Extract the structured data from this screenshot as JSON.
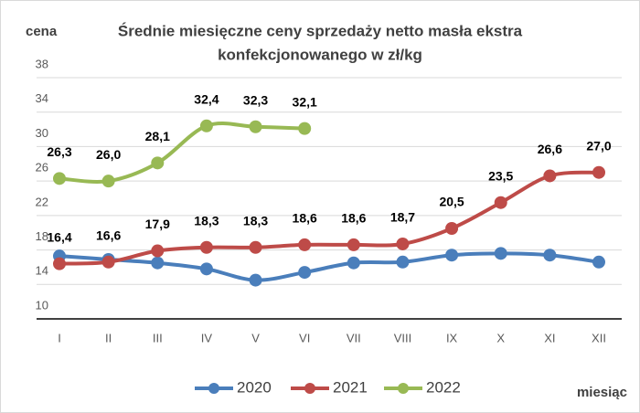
{
  "chart_data": {
    "type": "line",
    "title": [
      "Średnie miesięczne ceny sprzedaży netto masła ekstra",
      "konfekcjonowanego  w zł/kg"
    ],
    "y_label": "cena",
    "x_label": "miesiąc",
    "categories": [
      "I",
      "II",
      "III",
      "IV",
      "V",
      "VI",
      "VII",
      "VIII",
      "IX",
      "X",
      "XI",
      "XII"
    ],
    "series": [
      {
        "name": "2020",
        "color": "#4a7ebb",
        "values": [
          17.3,
          16.9,
          16.5,
          15.8,
          14.5,
          15.4,
          16.5,
          16.6,
          17.4,
          17.6,
          17.4,
          16.6
        ]
      },
      {
        "name": "2021",
        "color": "#be4b48",
        "values": [
          16.4,
          16.6,
          17.9,
          18.3,
          18.3,
          18.6,
          18.6,
          18.7,
          20.5,
          23.5,
          26.6,
          27.0
        ],
        "value_labels": [
          "16,4",
          "16,6",
          "17,9",
          "18,3",
          "18,3",
          "18,6",
          "18,6",
          "18,7",
          "20,5",
          "23,5",
          "26,6",
          "27,0"
        ]
      },
      {
        "name": "2022",
        "color": "#98b954",
        "values": [
          26.3,
          26.0,
          28.1,
          32.4,
          32.3,
          32.1,
          null,
          null,
          null,
          null,
          null,
          null
        ],
        "value_labels": [
          "26,3",
          "26,0",
          "28,1",
          "32,4",
          "32,3",
          "32,1",
          null,
          null,
          null,
          null,
          null,
          null
        ]
      }
    ],
    "ylim": [
      10,
      38
    ],
    "yticks": [
      10,
      14,
      18,
      22,
      26,
      30,
      34,
      38
    ],
    "grid": true,
    "legend": "bottom"
  }
}
